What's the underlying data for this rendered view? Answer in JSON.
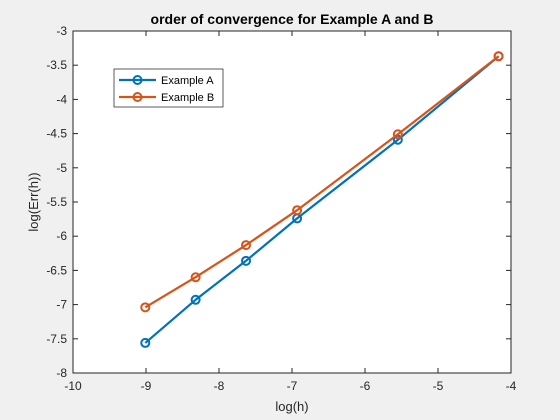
{
  "chart_data": {
    "type": "line",
    "title": "order of convergence for Example A and B",
    "xlabel": "log(h)",
    "ylabel": "log(Err(h))",
    "xlim": [
      -10,
      -4
    ],
    "ylim": [
      -8,
      -3
    ],
    "xticks": [
      -10,
      -9,
      -8,
      -7,
      -6,
      -5,
      -4
    ],
    "yticks": [
      -8,
      -7.5,
      -7,
      -6.5,
      -6,
      -5.5,
      -5,
      -4.5,
      -4,
      -3.5,
      -3
    ],
    "xtick_labels": [
      "-10",
      "-9",
      "-8",
      "-7",
      "-6",
      "-5",
      "-4"
    ],
    "ytick_labels": [
      "-8",
      "-7.5",
      "-7",
      "-6.5",
      "-6",
      "-5.5",
      "-5",
      "-4.5",
      "-4",
      "-3.5",
      "-3"
    ],
    "grid": false,
    "legend_position": "upper-left",
    "series": [
      {
        "name": "Example A",
        "color": "#0072BD",
        "marker": "circle",
        "x": [
          -9.01,
          -8.32,
          -7.63,
          -6.93,
          -5.55,
          -4.17
        ],
        "y": [
          -7.56,
          -6.93,
          -6.36,
          -5.74,
          -4.59,
          -3.37
        ]
      },
      {
        "name": "Example B",
        "color": "#D95319",
        "marker": "circle",
        "x": [
          -9.01,
          -8.32,
          -7.63,
          -6.93,
          -5.55,
          -4.17
        ],
        "y": [
          -7.04,
          -6.6,
          -6.13,
          -5.62,
          -4.51,
          -3.37
        ]
      }
    ]
  }
}
